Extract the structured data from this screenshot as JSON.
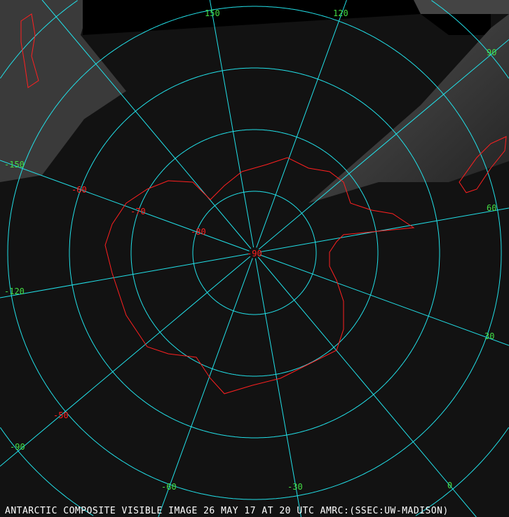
{
  "caption": "ANTARCTIC COMPOSITE VISIBLE IMAGE 26 MAY 17 AT 20 UTC AMRC:(SSEC:UW-MADISON)",
  "colors": {
    "grid": "#22e0e8",
    "coast": "#ff2020",
    "lon_label": "#44dd44",
    "lat_label": "#ff2020"
  },
  "projection": "south polar stereographic",
  "latitude_labels": [
    "-90",
    "-80",
    "-70",
    "-60",
    "-50"
  ],
  "longitude_labels": [
    "150",
    "120",
    "90",
    "60",
    "30",
    "0",
    "-30",
    "-60",
    "-90",
    "-120",
    "-150"
  ]
}
